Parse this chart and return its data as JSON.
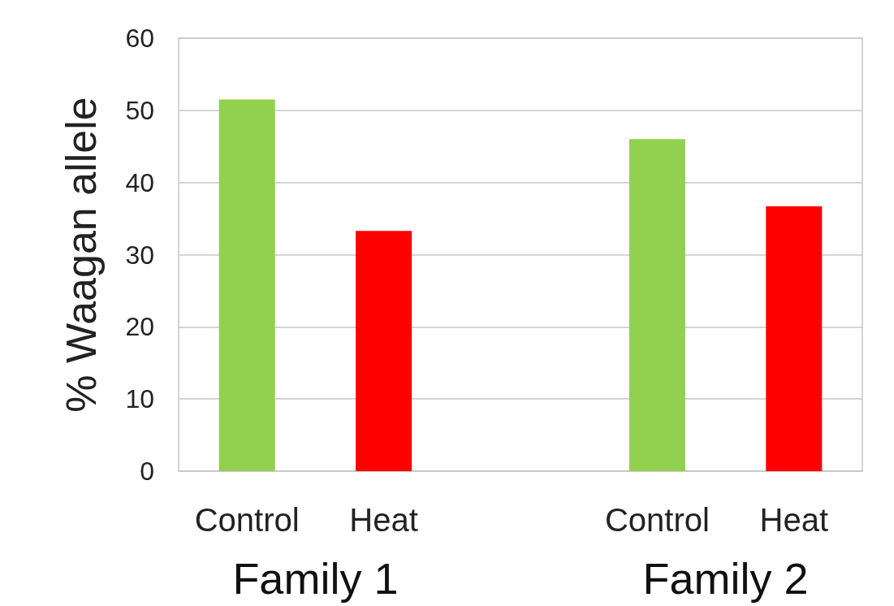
{
  "chart_data": {
    "type": "bar",
    "categories": [
      "Control",
      "Heat",
      null,
      "Control",
      "Heat"
    ],
    "values": [
      51.5,
      33.3,
      null,
      46.0,
      36.7
    ],
    "colors": [
      "#92d050",
      "#ff0000",
      null,
      "#92d050",
      "#ff0000"
    ],
    "ylabel": "% Waagan allele",
    "annotations": [
      "Family 1",
      "Family 2"
    ],
    "ylim": [
      0,
      60
    ],
    "yticks": [
      0,
      10,
      20,
      30,
      40,
      50,
      60
    ],
    "grid": true
  }
}
